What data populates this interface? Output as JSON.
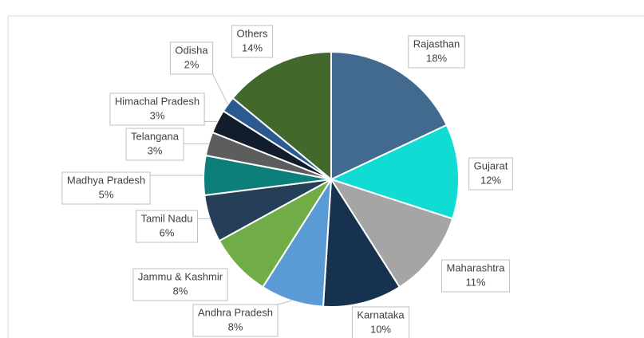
{
  "chart_data": {
    "type": "pie",
    "categories": [
      "Rajasthan",
      "Gujarat",
      "Maharashtra",
      "Karnataka",
      "Andhra Pradesh",
      "Jammu & Kashmir",
      "Tamil Nadu",
      "Madhya Pradesh",
      "Telangana",
      "Himachal Pradesh",
      "Odisha",
      "Others"
    ],
    "values": [
      18,
      12,
      11,
      10,
      8,
      8,
      6,
      5,
      3,
      3,
      2,
      14
    ],
    "value_labels": [
      "18%",
      "12%",
      "11%",
      "10%",
      "8%",
      "8%",
      "6%",
      "5%",
      "3%",
      "3%",
      "2%",
      "14%"
    ],
    "colors": [
      "#426a8f",
      "#10dcd4",
      "#a5a5a5",
      "#17324e",
      "#5b9bd5",
      "#70ad47",
      "#253f58",
      "#0c7f7a",
      "#5d5d5d",
      "#111d2c",
      "#2a5a8f",
      "#43682b"
    ]
  }
}
